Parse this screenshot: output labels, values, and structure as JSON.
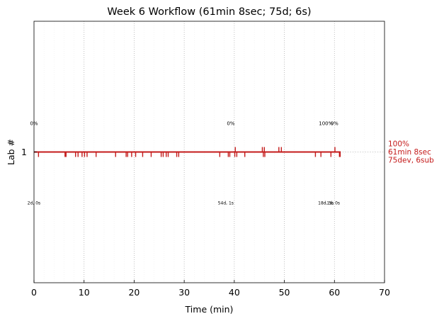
{
  "chart_data": {
    "type": "timeline",
    "title": "Week 6 Workflow (61min 8sec; 75d; 6s)",
    "xlabel": "Time (min)",
    "ylabel": "Lab #",
    "xlim": [
      0,
      70
    ],
    "xticks": [
      0,
      10,
      20,
      30,
      40,
      50,
      60,
      70
    ],
    "yticks": [
      "1"
    ],
    "grid": "vertical dotted",
    "colors": {
      "timeline": "#c41a1a",
      "side_label": "#c41a1a"
    },
    "series": [
      {
        "lab": "1",
        "start": 0,
        "end": 61.13,
        "side_label": [
          "100%",
          "61min 8sec",
          "75dev, 6sub"
        ],
        "down_ticks": [
          0.9,
          6.2,
          6.4,
          8.3,
          8.8,
          9.6,
          10.1,
          10.6,
          12.4,
          16.3,
          18.4,
          18.7,
          19.5,
          20.3,
          21.7,
          23.4,
          25.4,
          25.8,
          26.4,
          26.8,
          28.5,
          28.9,
          37.1,
          38.8,
          39.1,
          40.1,
          40.5,
          42.1,
          45.8,
          46.1,
          56.2,
          57.3,
          59.3,
          61.0
        ],
        "up_ticks": [
          40.2,
          45.6,
          46.0,
          48.9,
          49.4,
          60.1
        ],
        "top_labels": [
          {
            "x": 0,
            "text": "0%"
          },
          {
            "x": 39.3,
            "text": "0%"
          },
          {
            "x": 58.3,
            "text": "100%"
          },
          {
            "x": 60.0,
            "text": "0%"
          }
        ],
        "bottom_labels": [
          {
            "x": 0,
            "text": "2d, 0s"
          },
          {
            "x": 38.3,
            "text": "54d, 1s"
          },
          {
            "x": 58.3,
            "text": "18d, 5s"
          },
          {
            "x": 59.8,
            "text": "1d, 0s"
          }
        ]
      }
    ]
  }
}
